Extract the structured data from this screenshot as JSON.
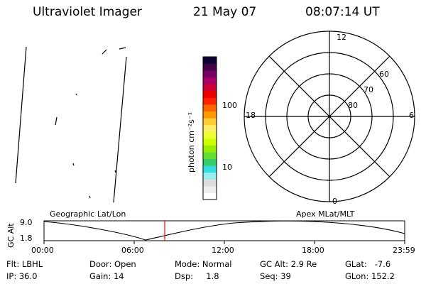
{
  "header": {
    "title": "Ultraviolet Imager",
    "date": "21 May 07",
    "time": "08:07:14 UT"
  },
  "colorbar": {
    "label": "photon cm⁻²s⁻¹",
    "tick_100": "100",
    "tick_10": "10",
    "colors": [
      "#ffffff",
      "#eeeeee",
      "#dcdcdc",
      "#99eeee",
      "#33dddd",
      "#33cc66",
      "#66dd33",
      "#99ee00",
      "#ccff00",
      "#eeff33",
      "#ffee66",
      "#ffcc33",
      "#ff9900",
      "#ff6600",
      "#ff2200",
      "#ee0000",
      "#cc0033",
      "#aa0066",
      "#770066",
      "#440044",
      "#110033"
    ]
  },
  "polar": {
    "mlt_top": "12",
    "mlt_left": "18",
    "mlt_right": "6",
    "mlt_bottom": "0",
    "lat_60": "60",
    "lat_70": "70",
    "lat_80": "80"
  },
  "panel_labels": {
    "geographic": "Geographic Lat/Lon",
    "apex": "Apex MLat/MLT"
  },
  "altitude_plot": {
    "ylabel": "GC Alt",
    "ytick_top": "9.0",
    "ytick_bottom": "1.8",
    "xticks": [
      "00:00",
      "06:00",
      "12:00",
      "18:00",
      "23:59"
    ],
    "marker_color": "#ff0000"
  },
  "info": {
    "flt": "Flt: LBHL",
    "ip": "IP: 36.0",
    "door": "Door: Open",
    "gain": "Gain: 14",
    "mode": "Mode: Normal",
    "dsp": "Dsp:     1.8",
    "gc_alt": "GC Alt: 2.9 Re",
    "seq": "Seq: 39",
    "glat": "GLat:   -7.6",
    "glon": "GLon: 152.2"
  }
}
